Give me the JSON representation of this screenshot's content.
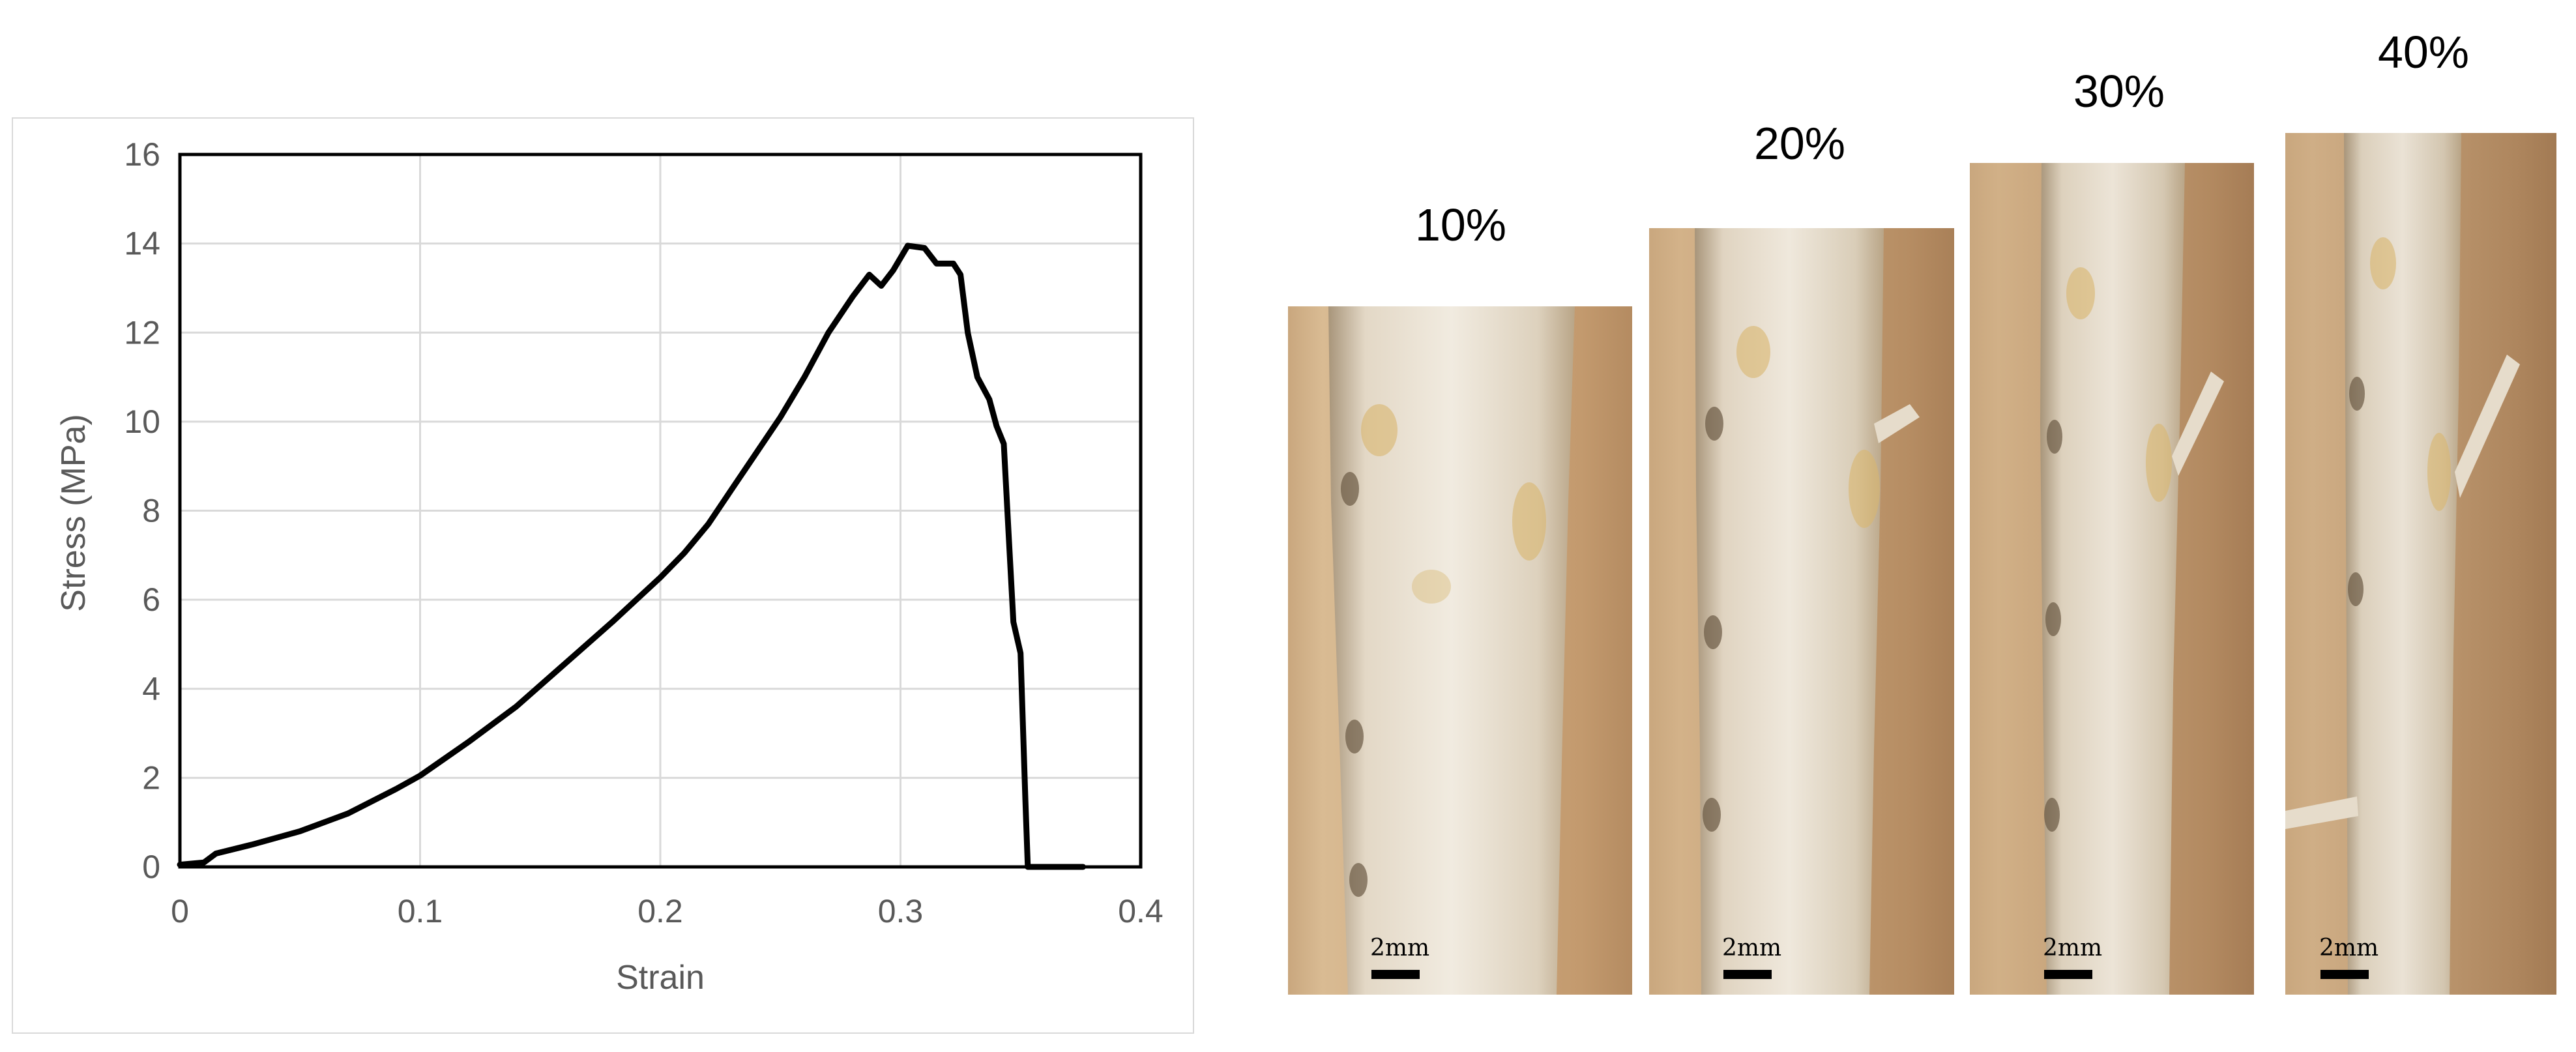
{
  "chart_data": {
    "type": "line",
    "title": "",
    "xlabel": "Strain",
    "ylabel": "Stress (MPa)",
    "xlim": [
      0,
      0.4
    ],
    "ylim": [
      0,
      16
    ],
    "x_ticks": [
      "0",
      "0.1",
      "0.2",
      "0.3",
      "0.4"
    ],
    "y_ticks": [
      "0",
      "2",
      "4",
      "6",
      "8",
      "10",
      "12",
      "14",
      "16"
    ],
    "grid": true,
    "legend": "none",
    "series": [
      {
        "color": "#000000",
        "points": [
          [
            0,
            0.05
          ],
          [
            0.01,
            0.1
          ],
          [
            0.015,
            0.3
          ],
          [
            0.03,
            0.5
          ],
          [
            0.05,
            0.8
          ],
          [
            0.07,
            1.2
          ],
          [
            0.09,
            1.75
          ],
          [
            0.1,
            2.05
          ],
          [
            0.12,
            2.8
          ],
          [
            0.14,
            3.6
          ],
          [
            0.16,
            4.55
          ],
          [
            0.18,
            5.5
          ],
          [
            0.2,
            6.5
          ],
          [
            0.21,
            7.05
          ],
          [
            0.22,
            7.7
          ],
          [
            0.23,
            8.5
          ],
          [
            0.24,
            9.3
          ],
          [
            0.25,
            10.1
          ],
          [
            0.26,
            11.0
          ],
          [
            0.27,
            12.0
          ],
          [
            0.28,
            12.8
          ],
          [
            0.287,
            13.3
          ],
          [
            0.292,
            13.05
          ],
          [
            0.297,
            13.4
          ],
          [
            0.303,
            13.95
          ],
          [
            0.31,
            13.9
          ],
          [
            0.315,
            13.55
          ],
          [
            0.322,
            13.55
          ],
          [
            0.325,
            13.3
          ],
          [
            0.328,
            12.0
          ],
          [
            0.332,
            11.0
          ],
          [
            0.337,
            10.5
          ],
          [
            0.34,
            9.9
          ],
          [
            0.343,
            9.5
          ],
          [
            0.345,
            7.5
          ],
          [
            0.347,
            5.5
          ],
          [
            0.35,
            4.8
          ],
          [
            0.352,
            1.5
          ],
          [
            0.353,
            0
          ],
          [
            0.36,
            0
          ],
          [
            0.376,
            0
          ]
        ]
      }
    ]
  },
  "images": [
    {
      "label": "10%",
      "scale_label": "2mm"
    },
    {
      "label": "20%",
      "scale_label": "2mm"
    },
    {
      "label": "30%",
      "scale_label": "2mm"
    },
    {
      "label": "40%",
      "scale_label": "2mm"
    }
  ]
}
